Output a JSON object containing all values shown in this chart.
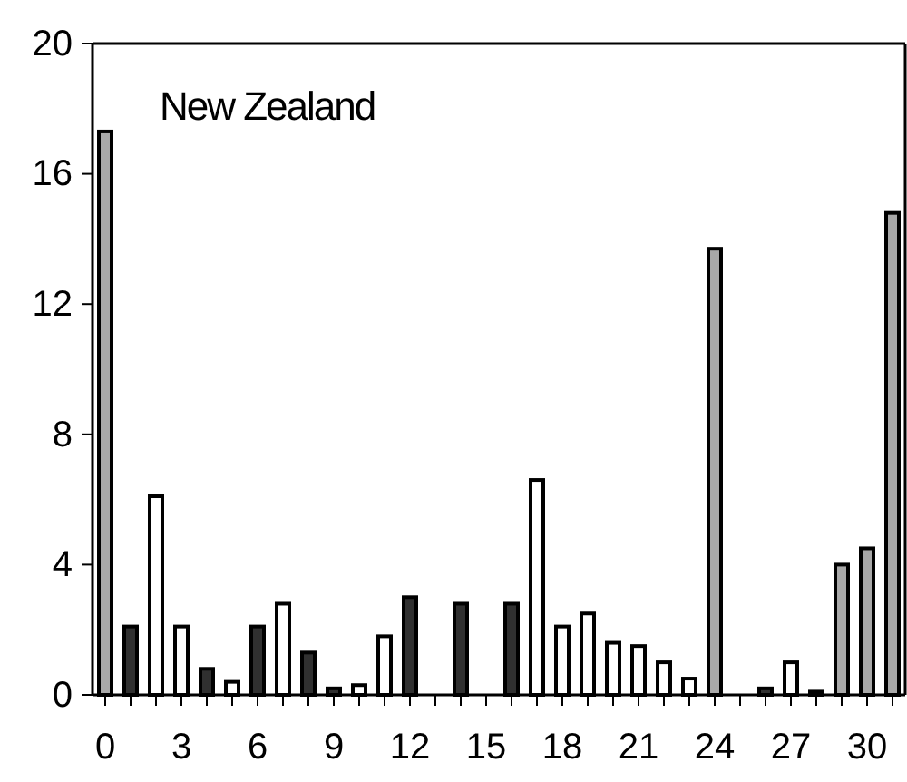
{
  "chart_data": {
    "type": "bar",
    "title": "New Zealand",
    "categories": [
      "0",
      null,
      null,
      "3",
      null,
      null,
      "6",
      null,
      null,
      "9",
      null,
      null,
      "12",
      null,
      null,
      "15",
      null,
      null,
      "18",
      null,
      null,
      "21",
      null,
      null,
      "24",
      null,
      null,
      "27",
      null,
      null,
      "30",
      null
    ],
    "values": [
      17.3,
      2.1,
      6.1,
      2.1,
      0.8,
      0.4,
      2.1,
      2.8,
      1.3,
      0.2,
      0.3,
      1.8,
      3.0,
      0,
      2.8,
      0,
      2.8,
      6.6,
      2.1,
      2.5,
      1.6,
      1.5,
      1.0,
      0.5,
      13.7,
      0,
      0.2,
      1.0,
      0.1,
      4.0,
      4.5,
      14.8
    ],
    "colors": [
      "#a8a8a8",
      "#303030",
      "#ffffff",
      "#ffffff",
      "#303030",
      "#ffffff",
      "#303030",
      "#ffffff",
      "#303030",
      "#303030",
      "#ffffff",
      "#ffffff",
      "#303030",
      "#ffffff",
      "#303030",
      "#ffffff",
      "#303030",
      "#ffffff",
      "#ffffff",
      "#ffffff",
      "#ffffff",
      "#ffffff",
      "#ffffff",
      "#ffffff",
      "#a8a8a8",
      "#ffffff",
      "#303030",
      "#ffffff",
      "#303030",
      "#a8a8a8",
      "#a8a8a8",
      "#a8a8a8"
    ],
    "ylim": [
      0,
      20
    ],
    "yticks": [
      0,
      4,
      8,
      12,
      16,
      20
    ]
  }
}
